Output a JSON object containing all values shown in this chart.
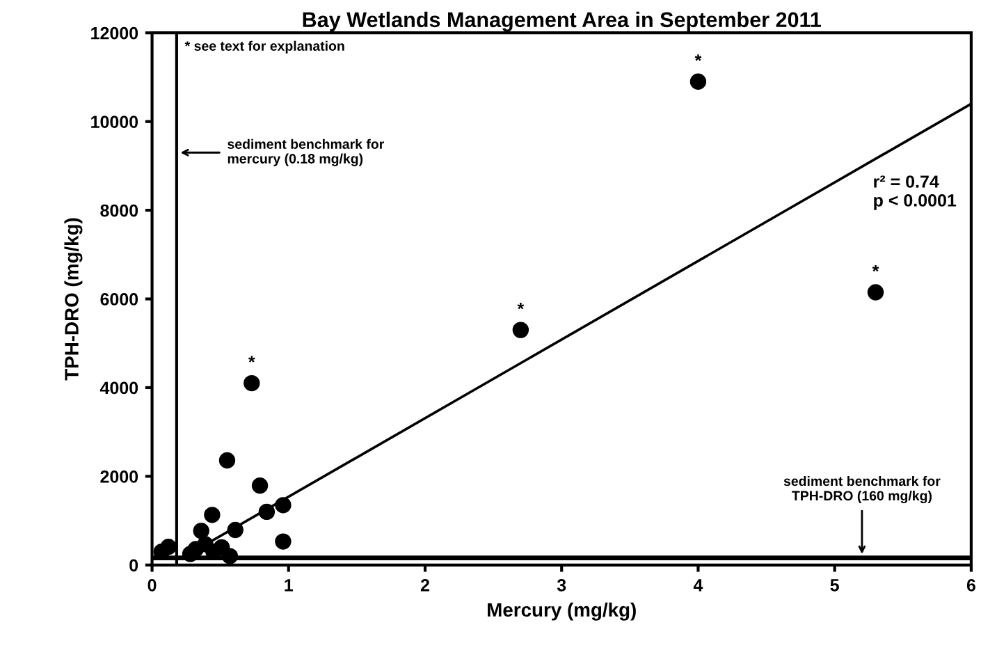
{
  "chart_data": {
    "type": "scatter",
    "title": "Bay Wetlands Management Area in September 2011",
    "xlabel": "Mercury (mg/kg)",
    "ylabel": "TPH-DRO (mg/kg)",
    "xlim": [
      0,
      6
    ],
    "xticks": [
      0,
      1,
      2,
      3,
      4,
      5,
      6
    ],
    "ylim": [
      0,
      12000
    ],
    "yticks": [
      0,
      2000,
      4000,
      6000,
      8000,
      10000,
      12000
    ],
    "grid": false,
    "series": [
      {
        "marker": "circle",
        "color": "#000000",
        "x": [
          4.0,
          5.3,
          2.7,
          0.73,
          0.55,
          0.79,
          0.84,
          0.96,
          0.96,
          0.44,
          0.61,
          0.36,
          0.39,
          0.32,
          0.12,
          0.07,
          0.45,
          0.57,
          0.28,
          0.51
        ],
        "values": [
          10900,
          6150,
          5300,
          4100,
          2360,
          1790,
          1200,
          1350,
          530,
          1130,
          790,
          770,
          470,
          360,
          410,
          300,
          300,
          200,
          250,
          400
        ]
      },
      {
        "type": "line",
        "marker": "none",
        "color": "#000000",
        "x": [
          0.3,
          6
        ],
        "values": [
          300,
          10400
        ]
      }
    ],
    "ref_lines": [
      {
        "axis": "x",
        "value": 0.18,
        "label": "sediment benchmark for\nmercury (0.18 mg/kg)",
        "color": "#000000"
      },
      {
        "axis": "y",
        "value": 160,
        "label": "sediment benchmark for\nTPH-DRO (160 mg/kg)",
        "color": "#000000"
      }
    ],
    "annotations": [
      "* see text for explanation",
      "r² = 0.74\np < 0.0001",
      {
        "text": "*",
        "x": 4.0,
        "y": 10900
      },
      {
        "text": "*",
        "x": 5.3,
        "y": 6150
      },
      {
        "text": "*",
        "x": 2.7,
        "y": 5300
      },
      {
        "text": "*",
        "x": 0.73,
        "y": 4100
      }
    ]
  }
}
